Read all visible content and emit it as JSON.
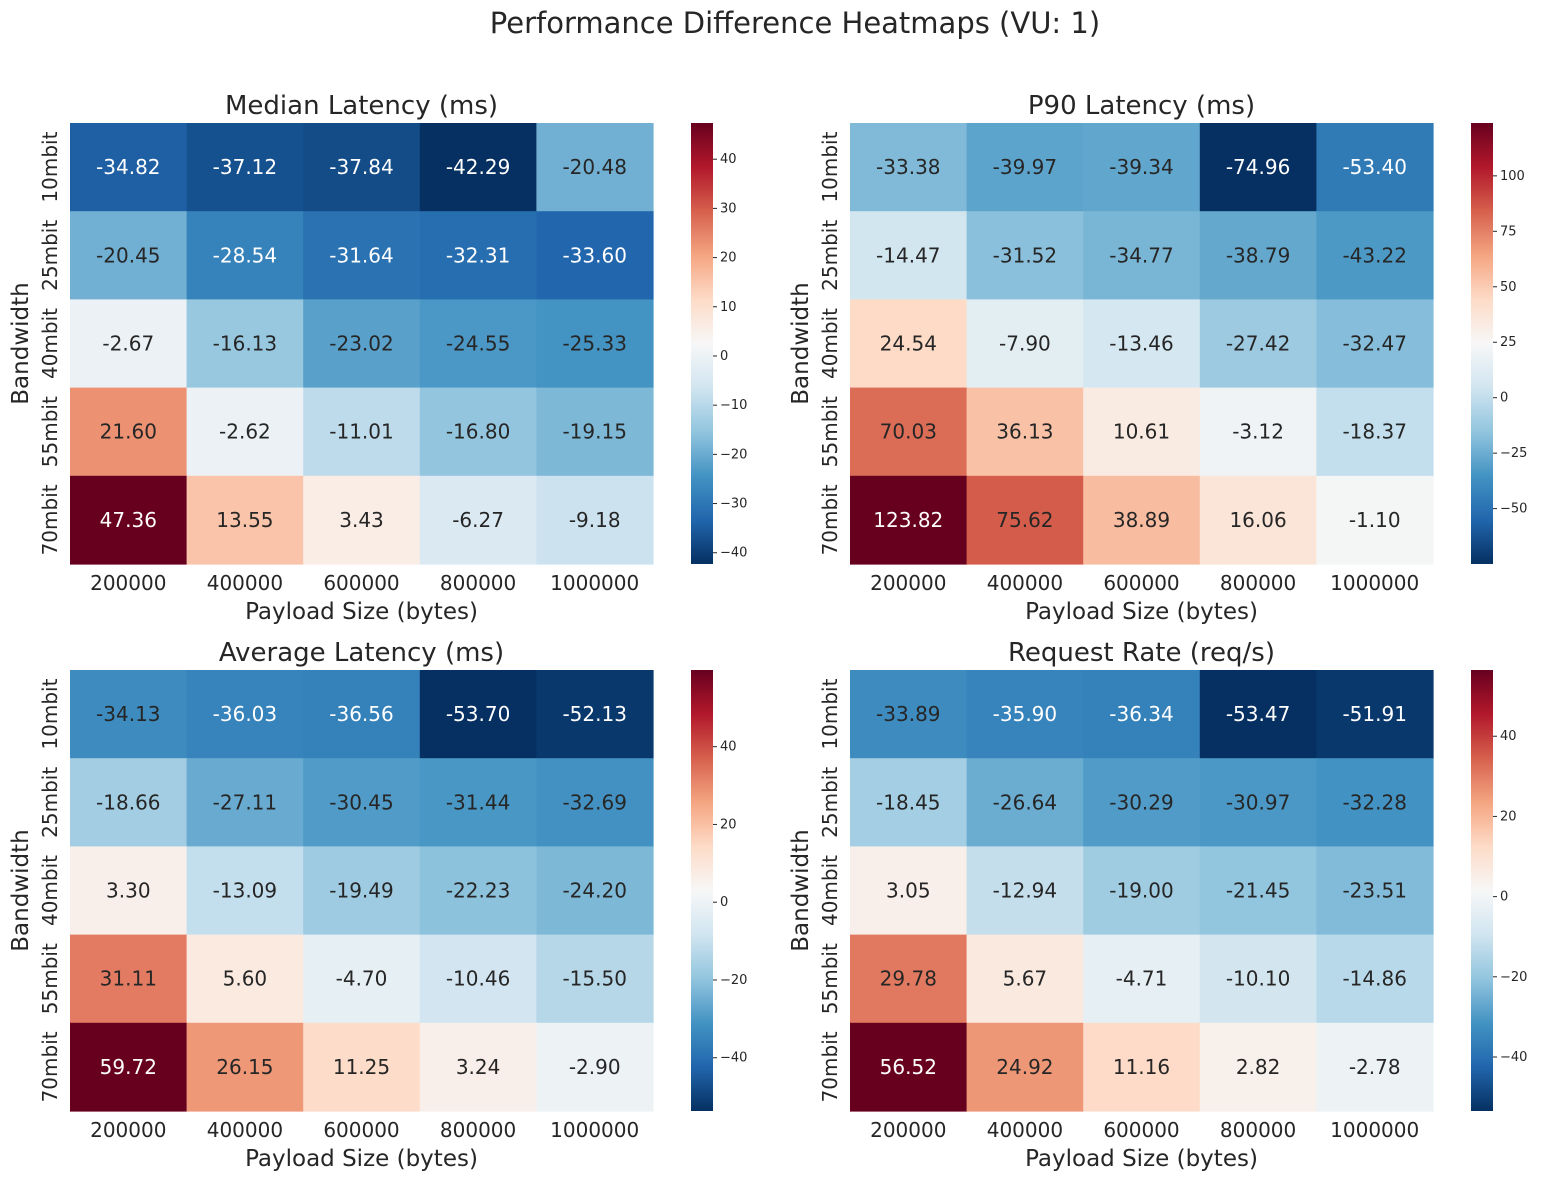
{
  "figure_title": "Performance Difference Heatmaps (VU: 1)",
  "colors": {
    "colormap": "RdBu_r",
    "low": "#053061",
    "mid": "#f7f7f7",
    "high": "#67001f",
    "light_text": "#ffffff",
    "dark_text": "#262626"
  },
  "chart_data": [
    {
      "type": "heatmap",
      "title": "Median Latency (ms)",
      "xlabel": "Payload Size (bytes)",
      "ylabel": "Bandwidth",
      "x": [
        "200000",
        "400000",
        "600000",
        "800000",
        "1000000"
      ],
      "y": [
        "10mbit",
        "25mbit",
        "40mbit",
        "55mbit",
        "70mbit"
      ],
      "values": [
        [
          -34.82,
          -37.12,
          -37.84,
          -42.29,
          -20.48
        ],
        [
          -20.45,
          -28.54,
          -31.64,
          -32.31,
          -33.6
        ],
        [
          -2.67,
          -16.13,
          -23.02,
          -24.55,
          -25.33
        ],
        [
          21.6,
          -2.62,
          -11.01,
          -16.8,
          -19.15
        ],
        [
          47.36,
          13.55,
          3.43,
          -6.27,
          -9.18
        ]
      ],
      "cell_labels": [
        [
          "-34.82",
          "-37.12",
          "-37.84",
          "-42.29",
          "-20.48"
        ],
        [
          "-20.45",
          "-28.54",
          "-31.64",
          "-32.31",
          "-33.60"
        ],
        [
          "-2.67",
          "-16.13",
          "-23.02",
          "-24.55",
          "-25.33"
        ],
        [
          "21.60",
          "-2.62",
          "-11.01",
          "-16.80",
          "-19.15"
        ],
        [
          "47.36",
          "13.55",
          "3.43",
          "-6.27",
          "-9.18"
        ]
      ],
      "colorbar": {
        "range": [
          -42.29,
          47.36
        ],
        "center": 0,
        "ticks": [
          -40,
          -30,
          -20,
          -10,
          0,
          10,
          20,
          30,
          40
        ],
        "tick_labels": [
          "−40",
          "−30",
          "−20",
          "−10",
          "0",
          "10",
          "20",
          "30",
          "40"
        ]
      }
    },
    {
      "type": "heatmap",
      "title": "P90 Latency (ms)",
      "xlabel": "Payload Size (bytes)",
      "ylabel": "Bandwidth",
      "x": [
        "200000",
        "400000",
        "600000",
        "800000",
        "1000000"
      ],
      "y": [
        "10mbit",
        "25mbit",
        "40mbit",
        "55mbit",
        "70mbit"
      ],
      "values": [
        [
          -33.38,
          -39.97,
          -39.34,
          -74.96,
          -53.4
        ],
        [
          -14.47,
          -31.52,
          -34.77,
          -38.79,
          -43.22
        ],
        [
          24.54,
          -7.9,
          -13.46,
          -27.42,
          -32.47
        ],
        [
          70.03,
          36.13,
          10.61,
          -3.12,
          -18.37
        ],
        [
          123.82,
          75.62,
          38.89,
          16.06,
          -1.1
        ]
      ],
      "cell_labels": [
        [
          "-33.38",
          "-39.97",
          "-39.34",
          "-74.96",
          "-53.40"
        ],
        [
          "-14.47",
          "-31.52",
          "-34.77",
          "-38.79",
          "-43.22"
        ],
        [
          "24.54",
          "-7.90",
          "-13.46",
          "-27.42",
          "-32.47"
        ],
        [
          "70.03",
          "36.13",
          "10.61",
          "-3.12",
          "-18.37"
        ],
        [
          "123.82",
          "75.62",
          "38.89",
          "16.06",
          "-1.10"
        ]
      ],
      "colorbar": {
        "range": [
          -74.96,
          123.82
        ],
        "center": 0,
        "ticks": [
          -50,
          -25,
          0,
          25,
          50,
          75,
          100
        ],
        "tick_labels": [
          "−50",
          "−25",
          "0",
          "25",
          "50",
          "75",
          "100"
        ]
      }
    },
    {
      "type": "heatmap",
      "title": "Average Latency (ms)",
      "xlabel": "Payload Size (bytes)",
      "ylabel": "Bandwidth",
      "x": [
        "200000",
        "400000",
        "600000",
        "800000",
        "1000000"
      ],
      "y": [
        "10mbit",
        "25mbit",
        "40mbit",
        "55mbit",
        "70mbit"
      ],
      "values": [
        [
          -34.13,
          -36.03,
          -36.56,
          -53.7,
          -52.13
        ],
        [
          -18.66,
          -27.11,
          -30.45,
          -31.44,
          -32.69
        ],
        [
          3.3,
          -13.09,
          -19.49,
          -22.23,
          -24.2
        ],
        [
          31.11,
          5.6,
          -4.7,
          -10.46,
          -15.5
        ],
        [
          59.72,
          26.15,
          11.25,
          3.24,
          -2.9
        ]
      ],
      "cell_labels": [
        [
          "-34.13",
          "-36.03",
          "-36.56",
          "-53.70",
          "-52.13"
        ],
        [
          "-18.66",
          "-27.11",
          "-30.45",
          "-31.44",
          "-32.69"
        ],
        [
          "3.30",
          "-13.09",
          "-19.49",
          "-22.23",
          "-24.20"
        ],
        [
          "31.11",
          "5.60",
          "-4.70",
          "-10.46",
          "-15.50"
        ],
        [
          "59.72",
          "26.15",
          "11.25",
          "3.24",
          "-2.90"
        ]
      ],
      "colorbar": {
        "range": [
          -53.7,
          59.72
        ],
        "center": 0,
        "ticks": [
          -40,
          -20,
          0,
          20,
          40
        ],
        "tick_labels": [
          "−40",
          "−20",
          "0",
          "20",
          "40"
        ]
      }
    },
    {
      "type": "heatmap",
      "title": "Request Rate (req/s)",
      "xlabel": "Payload Size (bytes)",
      "ylabel": "Bandwidth",
      "x": [
        "200000",
        "400000",
        "600000",
        "800000",
        "1000000"
      ],
      "y": [
        "10mbit",
        "25mbit",
        "40mbit",
        "55mbit",
        "70mbit"
      ],
      "values": [
        [
          -33.89,
          -35.9,
          -36.34,
          -53.47,
          -51.91
        ],
        [
          -18.45,
          -26.64,
          -30.29,
          -30.97,
          -32.28
        ],
        [
          3.05,
          -12.94,
          -19.0,
          -21.45,
          -23.51
        ],
        [
          29.78,
          5.67,
          -4.71,
          -10.1,
          -14.86
        ],
        [
          56.52,
          24.92,
          11.16,
          2.82,
          -2.78
        ]
      ],
      "cell_labels": [
        [
          "-33.89",
          "-35.90",
          "-36.34",
          "-53.47",
          "-51.91"
        ],
        [
          "-18.45",
          "-26.64",
          "-30.29",
          "-30.97",
          "-32.28"
        ],
        [
          "3.05",
          "-12.94",
          "-19.00",
          "-21.45",
          "-23.51"
        ],
        [
          "29.78",
          "5.67",
          "-4.71",
          "-10.10",
          "-14.86"
        ],
        [
          "56.52",
          "24.92",
          "11.16",
          "2.82",
          "-2.78"
        ]
      ],
      "colorbar": {
        "range": [
          -53.47,
          56.52
        ],
        "center": 0,
        "ticks": [
          -40,
          -20,
          0,
          20,
          40
        ],
        "tick_labels": [
          "−40",
          "−20",
          "0",
          "20",
          "40"
        ]
      }
    }
  ]
}
